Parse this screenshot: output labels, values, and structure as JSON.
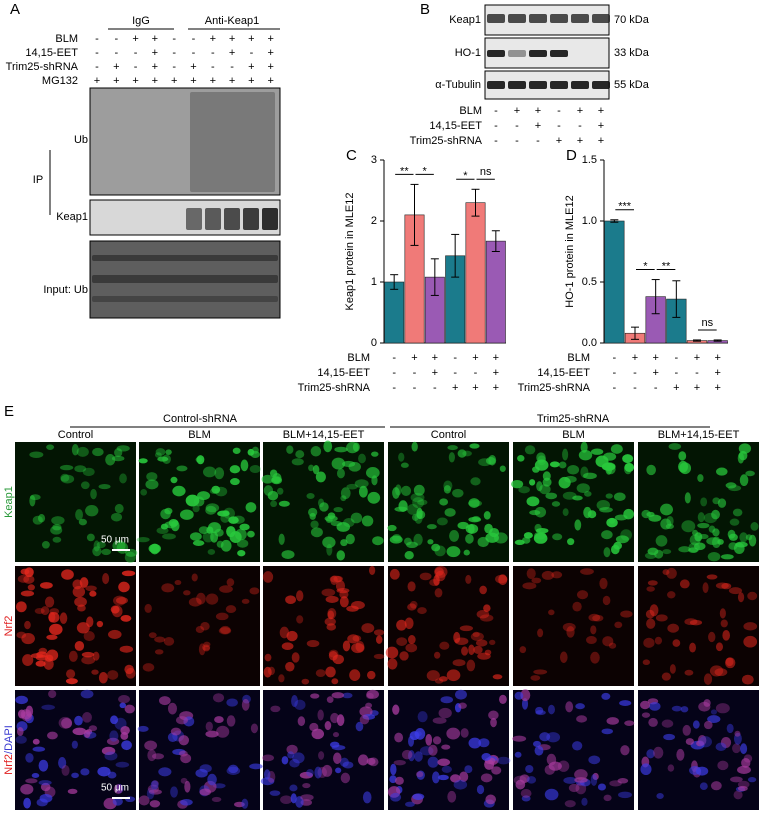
{
  "panel_a": {
    "label": "A",
    "groups": [
      "IgG",
      "Anti-Keap1"
    ],
    "rows": [
      {
        "name": "BLM",
        "signs": [
          "-",
          "-",
          "+",
          "+",
          "-",
          "-",
          "+",
          "+",
          "+",
          "+"
        ]
      },
      {
        "name": "14,15-EET",
        "signs": [
          "-",
          "-",
          "-",
          "+",
          "-",
          "-",
          "-",
          "+",
          "-",
          "+"
        ]
      },
      {
        "name": "Trim25-shRNA",
        "signs": [
          "-",
          "+",
          "-",
          "+",
          "-",
          "+",
          "-",
          "-",
          "+",
          "+"
        ]
      },
      {
        "name": "MG132",
        "signs": [
          "+",
          "+",
          "+",
          "+",
          "+",
          "+",
          "+",
          "+",
          "+",
          "+"
        ]
      }
    ],
    "ip_label": "IP",
    "blot_labels": [
      "Ub",
      "Keap1",
      "Input: Ub"
    ]
  },
  "panel_b": {
    "label": "B",
    "blots": [
      {
        "name": "Keap1",
        "size": "70 kDa"
      },
      {
        "name": "HO-1",
        "size": "33 kDa"
      },
      {
        "name": "α-Tubulin",
        "size": "55 kDa"
      }
    ],
    "rows": [
      {
        "name": "BLM",
        "signs": [
          "-",
          "+",
          "+",
          "-",
          "+",
          "+"
        ]
      },
      {
        "name": "14,15-EET",
        "signs": [
          "-",
          "-",
          "+",
          "-",
          "-",
          "+"
        ]
      },
      {
        "name": "Trim25-shRNA",
        "signs": [
          "-",
          "-",
          "-",
          "+",
          "+",
          "+"
        ]
      }
    ]
  },
  "chart_data": [
    {
      "type": "bar",
      "label": "C",
      "ylabel": "Keap1 protein in MLE12",
      "values": [
        1.0,
        2.1,
        1.08,
        1.43,
        2.3,
        1.67
      ],
      "errors": [
        0.12,
        0.5,
        0.3,
        0.35,
        0.22,
        0.17
      ],
      "colors": [
        "#1b7b8c",
        "#f07a78",
        "#9a5ab4",
        "#1b7b8c",
        "#f07a78",
        "#9a5ab4"
      ],
      "ylim": [
        0,
        3
      ],
      "yticks": [
        0,
        1,
        2,
        3
      ],
      "significance": [
        "**",
        "*",
        null,
        "*",
        "ns"
      ],
      "rows": [
        {
          "name": "BLM",
          "signs": [
            "-",
            "+",
            "+",
            "-",
            "+",
            "+"
          ]
        },
        {
          "name": "14,15-EET",
          "signs": [
            "-",
            "-",
            "+",
            "-",
            "-",
            "+"
          ]
        },
        {
          "name": "Trim25-shRNA",
          "signs": [
            "-",
            "-",
            "-",
            "+",
            "+",
            "+"
          ]
        }
      ]
    },
    {
      "type": "bar",
      "label": "D",
      "ylabel": "HO-1 protein in MLE12",
      "values": [
        1.0,
        0.08,
        0.38,
        0.36,
        0.02,
        0.02
      ],
      "errors": [
        0.01,
        0.05,
        0.14,
        0.15,
        0.005,
        0.005
      ],
      "colors": [
        "#1b7b8c",
        "#f07a78",
        "#9a5ab4",
        "#1b7b8c",
        "#f07a78",
        "#9a5ab4"
      ],
      "ylim": [
        0,
        1.5
      ],
      "yticks": [
        {
          "value": 0,
          "label": "0.0"
        },
        0.5,
        {
          "value": 1,
          "label": "1.0"
        },
        1.5
      ],
      "significance": [
        "***",
        "*",
        "**",
        null,
        "ns"
      ],
      "rows": [
        {
          "name": "BLM",
          "signs": [
            "-",
            "+",
            "+",
            "-",
            "+",
            "+"
          ]
        },
        {
          "name": "14,15-EET",
          "signs": [
            "-",
            "-",
            "+",
            "-",
            "-",
            "+"
          ]
        },
        {
          "name": "Trim25-shRNA",
          "signs": [
            "-",
            "-",
            "-",
            "+",
            "+",
            "+"
          ]
        }
      ]
    }
  ],
  "panel_e": {
    "label": "E",
    "groups": [
      "Control-shRNA",
      "Trim25-shRNA"
    ],
    "columns": [
      "Control",
      "BLM",
      "BLM+14,15-EET",
      "Control",
      "BLM",
      "BLM+14,15-EET"
    ],
    "row_labels": [
      [
        "Keap1"
      ],
      [
        "Nrf2"
      ],
      [
        "Nrf2",
        "/DAPI"
      ]
    ],
    "row_label_colors": [
      [
        "#2a9a3a"
      ],
      [
        "#e02020"
      ],
      [
        "#e02020",
        "#3a3ad0"
      ]
    ],
    "scale_bar": "50 μm"
  }
}
